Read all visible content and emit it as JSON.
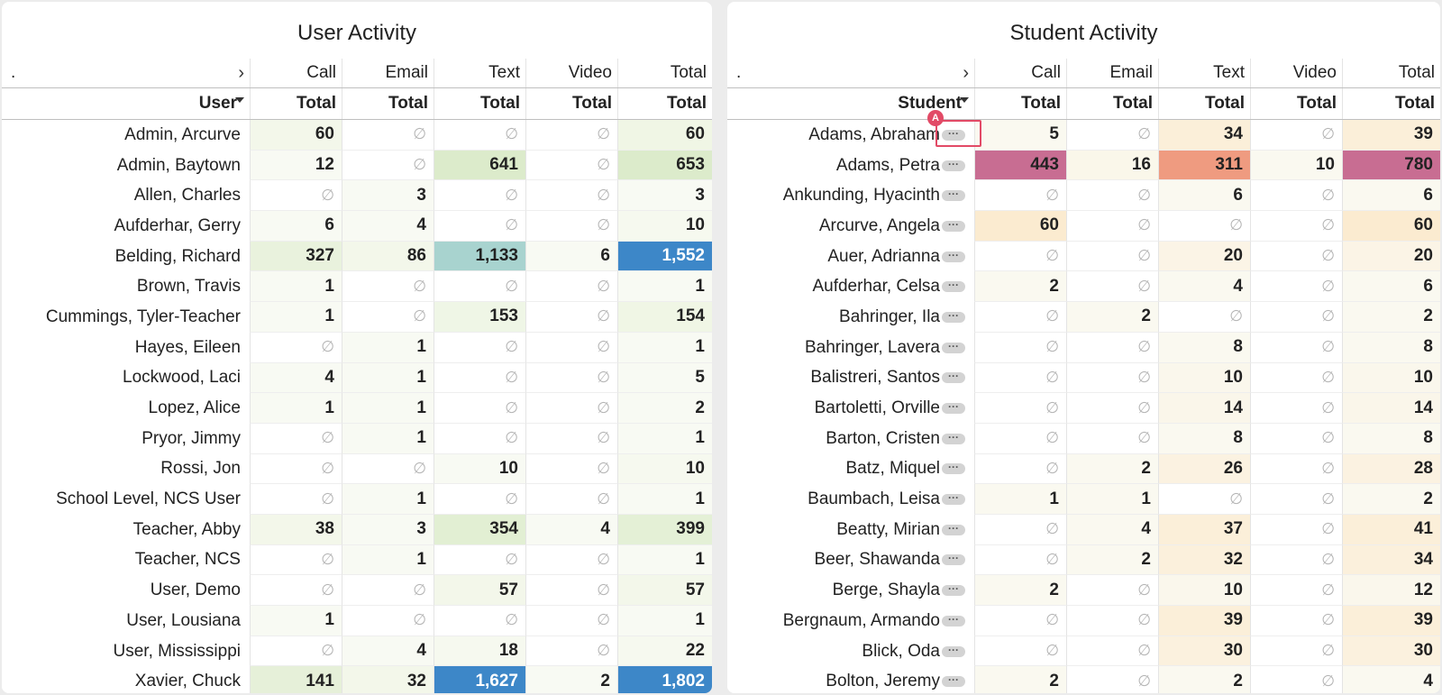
{
  "user_panel": {
    "title": "User Activity",
    "header_dot": ".",
    "columns": [
      "Call",
      "Email",
      "Text",
      "Video",
      "Total"
    ],
    "subheader_first": "User",
    "subheader": [
      "Total",
      "Total",
      "Total",
      "Total",
      "Total"
    ],
    "rows": [
      {
        "name": "Admin, Arcurve",
        "values": [
          "60",
          "∅",
          "∅",
          "∅",
          "60"
        ],
        "bg": [
          "#f3f7ea",
          "",
          "",
          "",
          "#f0f6e5"
        ]
      },
      {
        "name": "Admin, Baytown",
        "values": [
          "12",
          "∅",
          "641",
          "∅",
          "653"
        ],
        "bg": [
          "#f8faf3",
          "",
          "#dcebcb",
          "",
          "#dcebcb"
        ]
      },
      {
        "name": "Allen, Charles",
        "values": [
          "∅",
          "3",
          "∅",
          "∅",
          "3"
        ],
        "bg": [
          "",
          "#f8faf3",
          "",
          "",
          "#f8faf3"
        ]
      },
      {
        "name": "Aufderhar, Gerry",
        "values": [
          "6",
          "4",
          "∅",
          "∅",
          "10"
        ],
        "bg": [
          "#f8faf3",
          "#f8faf3",
          "",
          "",
          "#f6f9ef"
        ]
      },
      {
        "name": "Belding, Richard",
        "values": [
          "327",
          "86",
          "1,133",
          "6",
          "1,552"
        ],
        "bg": [
          "#e9f2dd",
          "#f3f7ea",
          "#a8d3cf",
          "#f8faf3",
          "#3d87c8"
        ]
      },
      {
        "name": "Brown, Travis",
        "values": [
          "1",
          "∅",
          "∅",
          "∅",
          "1"
        ],
        "bg": [
          "#f8faf3",
          "",
          "",
          "",
          "#f8faf3"
        ]
      },
      {
        "name": "Cummings, Tyler-Teacher",
        "values": [
          "1",
          "∅",
          "153",
          "∅",
          "154"
        ],
        "bg": [
          "#f8faf3",
          "",
          "#eff6e6",
          "",
          "#f0f6e5"
        ]
      },
      {
        "name": "Hayes, Eileen",
        "values": [
          "∅",
          "1",
          "∅",
          "∅",
          "1"
        ],
        "bg": [
          "",
          "#f8faf3",
          "",
          "",
          "#f8faf3"
        ]
      },
      {
        "name": "Lockwood, Laci",
        "values": [
          "4",
          "1",
          "∅",
          "∅",
          "5"
        ],
        "bg": [
          "#f8faf3",
          "#f8faf3",
          "",
          "",
          "#f8faf3"
        ]
      },
      {
        "name": "Lopez, Alice",
        "values": [
          "1",
          "1",
          "∅",
          "∅",
          "2"
        ],
        "bg": [
          "#f8faf3",
          "#f8faf3",
          "",
          "",
          "#f8faf3"
        ]
      },
      {
        "name": "Pryor, Jimmy",
        "values": [
          "∅",
          "1",
          "∅",
          "∅",
          "1"
        ],
        "bg": [
          "",
          "#f8faf3",
          "",
          "",
          "#f8faf3"
        ]
      },
      {
        "name": "Rossi, Jon",
        "values": [
          "∅",
          "∅",
          "10",
          "∅",
          "10"
        ],
        "bg": [
          "",
          "",
          "#f8faf3",
          "",
          "#f6f9ef"
        ]
      },
      {
        "name": "School Level, NCS User",
        "values": [
          "∅",
          "1",
          "∅",
          "∅",
          "1"
        ],
        "bg": [
          "",
          "#f8faf3",
          "",
          "",
          "#f8faf3"
        ]
      },
      {
        "name": "Teacher, Abby",
        "values": [
          "38",
          "3",
          "354",
          "4",
          "399"
        ],
        "bg": [
          "#f3f7ea",
          "#f8faf3",
          "#e2efd3",
          "#f8faf3",
          "#e4f0d6"
        ]
      },
      {
        "name": "Teacher, NCS",
        "values": [
          "∅",
          "1",
          "∅",
          "∅",
          "1"
        ],
        "bg": [
          "",
          "#f8faf3",
          "",
          "",
          "#f8faf3"
        ]
      },
      {
        "name": "User, Demo",
        "values": [
          "∅",
          "∅",
          "57",
          "∅",
          "57"
        ],
        "bg": [
          "",
          "",
          "#f3f7ea",
          "",
          "#f3f7ea"
        ]
      },
      {
        "name": "User, Lousiana",
        "values": [
          "1",
          "∅",
          "∅",
          "∅",
          "1"
        ],
        "bg": [
          "#f8faf3",
          "",
          "",
          "",
          "#f8faf3"
        ]
      },
      {
        "name": "User, Mississippi",
        "values": [
          "∅",
          "4",
          "18",
          "∅",
          "22"
        ],
        "bg": [
          "",
          "#f8faf3",
          "#f6f9ef",
          "",
          "#f6f9ef"
        ]
      },
      {
        "name": "Xavier, Chuck",
        "values": [
          "141",
          "32",
          "1,627",
          "2",
          "1,802"
        ],
        "bg": [
          "#e6f0d9",
          "#f3f7ea",
          "#3d87c8",
          "#f8faf3",
          "#3d87c8"
        ]
      }
    ]
  },
  "student_panel": {
    "title": "Student Activity",
    "header_dot": ".",
    "columns": [
      "Call",
      "Email",
      "Text",
      "Video",
      "Total"
    ],
    "subheader_first": "Student",
    "subheader": [
      "Total",
      "Total",
      "Total",
      "Total",
      "Total"
    ],
    "rows": [
      {
        "name": "Adams, Abraham",
        "values": [
          "5",
          "∅",
          "34",
          "∅",
          "39"
        ],
        "bg": [
          "#faf9f0",
          "",
          "#fbefd9",
          "",
          "#fbefd9"
        ]
      },
      {
        "name": "Adams, Petra",
        "values": [
          "443",
          "16",
          "311",
          "10",
          "780"
        ],
        "bg": [
          "#c86d92",
          "#faf7ea",
          "#ef9b80",
          "#faf9f0",
          "#c86d92"
        ]
      },
      {
        "name": "Ankunding, Hyacinth",
        "values": [
          "∅",
          "∅",
          "6",
          "∅",
          "6"
        ],
        "bg": [
          "",
          "",
          "#faf9f0",
          "",
          "#faf9f0"
        ]
      },
      {
        "name": "Arcurve, Angela",
        "values": [
          "60",
          "∅",
          "∅",
          "∅",
          "60"
        ],
        "bg": [
          "#fbebd0",
          "",
          "",
          "",
          "#fbebd0"
        ]
      },
      {
        "name": "Auer, Adrianna",
        "values": [
          "∅",
          "∅",
          "20",
          "∅",
          "20"
        ],
        "bg": [
          "",
          "",
          "#fbf4e6",
          "",
          "#fbf4e6"
        ]
      },
      {
        "name": "Aufderhar, Celsa",
        "values": [
          "2",
          "∅",
          "4",
          "∅",
          "6"
        ],
        "bg": [
          "#faf9f0",
          "",
          "#faf9f0",
          "",
          "#faf9f0"
        ]
      },
      {
        "name": "Bahringer, Ila",
        "values": [
          "∅",
          "2",
          "∅",
          "∅",
          "2"
        ],
        "bg": [
          "",
          "#faf9f0",
          "",
          "",
          "#faf9f0"
        ]
      },
      {
        "name": "Bahringer, Lavera",
        "values": [
          "∅",
          "∅",
          "8",
          "∅",
          "8"
        ],
        "bg": [
          "",
          "",
          "#faf9f0",
          "",
          "#faf9f0"
        ]
      },
      {
        "name": "Balistreri, Santos",
        "values": [
          "∅",
          "∅",
          "10",
          "∅",
          "10"
        ],
        "bg": [
          "",
          "",
          "#faf7ec",
          "",
          "#faf7ec"
        ]
      },
      {
        "name": "Bartoletti, Orville",
        "values": [
          "∅",
          "∅",
          "14",
          "∅",
          "14"
        ],
        "bg": [
          "",
          "",
          "#faf6ea",
          "",
          "#faf6ea"
        ]
      },
      {
        "name": "Barton, Cristen",
        "values": [
          "∅",
          "∅",
          "8",
          "∅",
          "8"
        ],
        "bg": [
          "",
          "",
          "#faf9f0",
          "",
          "#faf9f0"
        ]
      },
      {
        "name": "Batz, Miquel",
        "values": [
          "∅",
          "2",
          "26",
          "∅",
          "28"
        ],
        "bg": [
          "",
          "#faf9f0",
          "#fbf2e1",
          "",
          "#fbf2e1"
        ]
      },
      {
        "name": "Baumbach, Leisa",
        "values": [
          "1",
          "1",
          "∅",
          "∅",
          "2"
        ],
        "bg": [
          "#faf9f0",
          "#faf9f0",
          "",
          "",
          "#faf9f0"
        ]
      },
      {
        "name": "Beatty, Mirian",
        "values": [
          "∅",
          "4",
          "37",
          "∅",
          "41"
        ],
        "bg": [
          "",
          "#faf9f0",
          "#fbefd9",
          "",
          "#fbefd9"
        ]
      },
      {
        "name": "Beer, Shawanda",
        "values": [
          "∅",
          "2",
          "32",
          "∅",
          "34"
        ],
        "bg": [
          "",
          "#faf9f0",
          "#fbf0dc",
          "",
          "#fbf0dc"
        ]
      },
      {
        "name": "Berge, Shayla",
        "values": [
          "2",
          "∅",
          "10",
          "∅",
          "12"
        ],
        "bg": [
          "#faf9f0",
          "",
          "#faf7ec",
          "",
          "#faf7ec"
        ]
      },
      {
        "name": "Bergnaum, Armando",
        "values": [
          "∅",
          "∅",
          "39",
          "∅",
          "39"
        ],
        "bg": [
          "",
          "",
          "#fbefd9",
          "",
          "#fbefd9"
        ]
      },
      {
        "name": "Blick, Oda",
        "values": [
          "∅",
          "∅",
          "30",
          "∅",
          "30"
        ],
        "bg": [
          "",
          "",
          "#fbf1de",
          "",
          "#fbf1de"
        ]
      },
      {
        "name": "Bolton, Jeremy",
        "values": [
          "2",
          "∅",
          "2",
          "∅",
          "4"
        ],
        "bg": [
          "#faf9f0",
          "",
          "#faf9f0",
          "",
          "#faf9f0"
        ]
      }
    ]
  },
  "marker": {
    "label": "A"
  },
  "row_action_label": "···"
}
